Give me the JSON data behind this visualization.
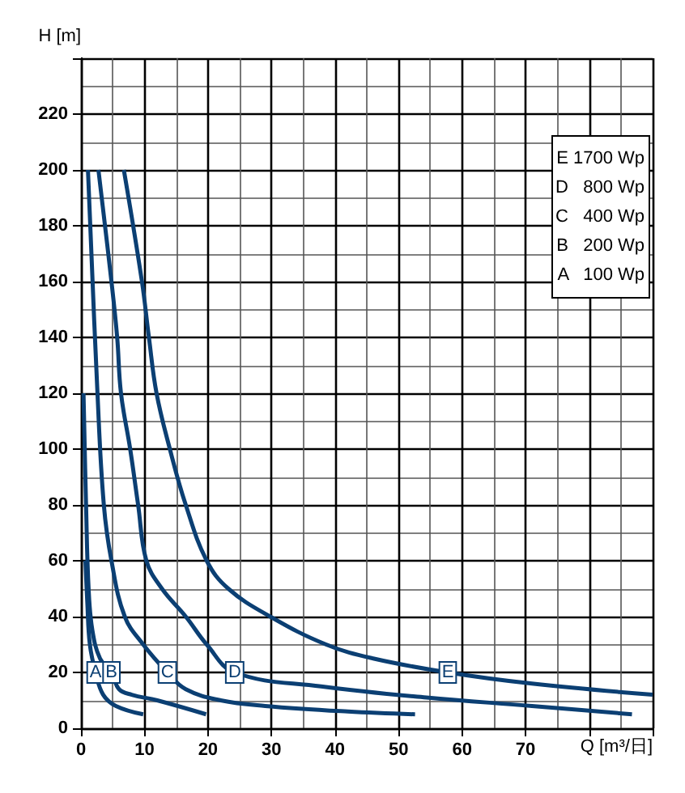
{
  "chart_data": {
    "type": "line",
    "xlabel": "Q [m³/日]",
    "ylabel": "H [m]",
    "xlim": [
      0,
      90
    ],
    "xticks": [
      0,
      10,
      20,
      30,
      40,
      50,
      60,
      70,
      {
        "value": 80,
        "label": null
      },
      {
        "value": 90,
        "label": null
      }
    ],
    "ylim": [
      0,
      240
    ],
    "yticks": [
      0,
      20,
      40,
      60,
      80,
      100,
      120,
      140,
      160,
      180,
      200,
      220,
      {
        "value": 240,
        "label": null
      }
    ],
    "grid": true,
    "marker": "none",
    "line_style": "solid",
    "series": [
      {
        "color": "#0b3f73",
        "x": [
          0.7,
          1.0,
          1.4,
          2.3,
          3.5,
          5.5,
          9.8
        ],
        "values": [
          60,
          45,
          30,
          20,
          12,
          8,
          5
        ]
      },
      {
        "color": "#0b3f73",
        "x": [
          0.4,
          0.8,
          1.2,
          1.8,
          3,
          4.8,
          6,
          8,
          12,
          19.7
        ],
        "values": [
          120,
          80,
          50,
          35,
          25,
          20,
          14,
          12,
          10,
          5
        ]
      },
      {
        "color": "#0b3f73",
        "x": [
          1.1,
          2.6,
          3.6,
          4.8,
          6.9,
          9.8,
          13.6,
          16.5,
          22,
          29,
          42,
          52.6
        ],
        "values": [
          200,
          120,
          80,
          60,
          40,
          30,
          20,
          14,
          10,
          8,
          6,
          5
        ]
      },
      {
        "color": "#0b3f73",
        "x": [
          2.75,
          4.8,
          5.7,
          6.3,
          7.75,
          9,
          10.3,
          12.75,
          16.5,
          19.8,
          24.2,
          37.8,
          54.4,
          71,
          86.75
        ],
        "values": [
          200,
          160,
          140,
          120,
          100,
          80,
          60,
          50,
          40,
          30,
          20,
          15,
          11,
          8,
          5
        ]
      },
      {
        "color": "#0b3f73",
        "x": [
          6.75,
          9.6,
          10.7,
          11.9,
          14,
          16.5,
          19.8,
          23.2,
          29.8,
          38.6,
          46,
          57.75,
          71,
          90
        ],
        "values": [
          200,
          160,
          140,
          120,
          100,
          80,
          60,
          50,
          40,
          30,
          25,
          20,
          16,
          12
        ]
      }
    ],
    "annotations": [
      {
        "text": "A",
        "x": 2.3,
        "y": 20
      },
      {
        "text": "B",
        "x": 4.8,
        "y": 20
      },
      {
        "text": "C",
        "x": 13.6,
        "y": 20
      },
      {
        "text": "D",
        "x": 24.2,
        "y": 20
      },
      {
        "text": "E",
        "x": 57.75,
        "y": 20
      },
      "E 1700 Wp",
      "D   800 Wp",
      "C   400 Wp",
      "B   200 Wp",
      "A   100 Wp"
    ]
  }
}
